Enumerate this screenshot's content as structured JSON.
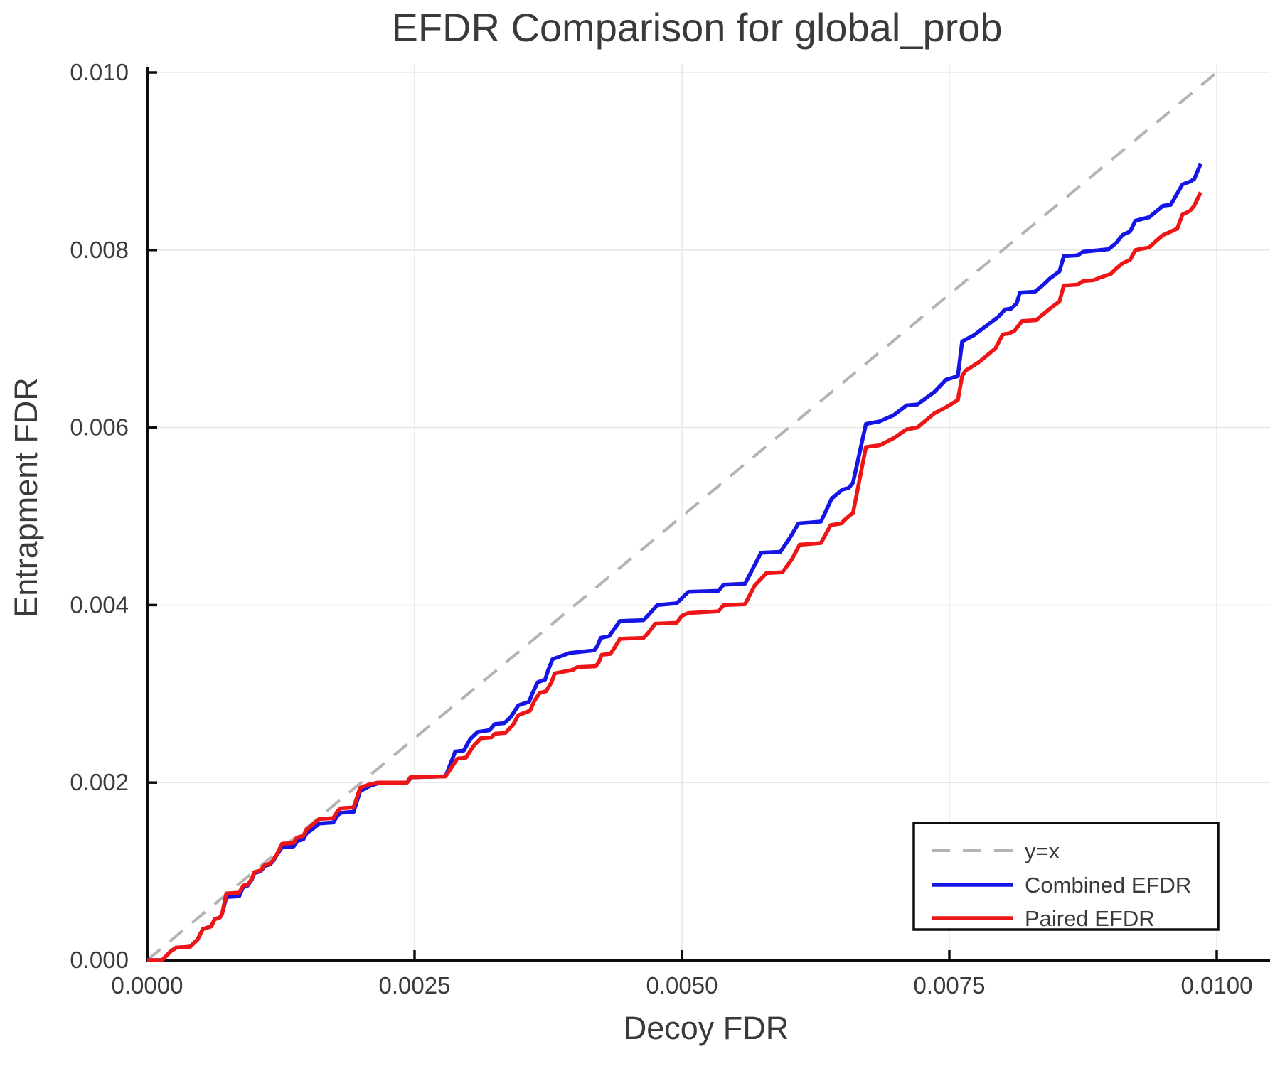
{
  "figure": {
    "background": "#ffffff",
    "text_color": "#3a3a3a",
    "axis_color": "#0d0d0d",
    "grid_color": "#e7e7e7"
  },
  "chart_data": {
    "type": "line",
    "title": "EFDR Comparison for global_prob",
    "xlabel": "Decoy FDR",
    "ylabel": "Entrapment FDR",
    "xlim": [
      0,
      0.0105
    ],
    "ylim": [
      0,
      0.0101
    ],
    "grid": true,
    "legend_position": "bottom-right",
    "x_ticks": {
      "values": [
        0,
        0.0025,
        0.005,
        0.0075,
        0.01
      ],
      "labels": [
        "0.0000",
        "0.0025",
        "0.0050",
        "0.0075",
        "0.0100"
      ]
    },
    "y_ticks": {
      "values": [
        0,
        0.002,
        0.004,
        0.006,
        0.008,
        0.01
      ],
      "labels": [
        "0.000",
        "0.002",
        "0.004",
        "0.006",
        "0.008",
        "0.010"
      ]
    },
    "series": [
      {
        "name": "y=x",
        "role": "reference",
        "style": "dashed",
        "color": "#b3b3b3",
        "points": [
          [
            0,
            0
          ],
          [
            0.01,
            0.01
          ]
        ]
      },
      {
        "name": "Combined EFDR",
        "role": "data",
        "style": "solid",
        "color": "#1515e6",
        "points": [
          [
            0,
            0
          ],
          [
            0.00014,
            0
          ],
          [
            0.00022,
            0.0001
          ],
          [
            0.00027,
            0.00014
          ],
          [
            0.0004,
            0.00015
          ],
          [
            0.00047,
            0.00023
          ],
          [
            0.00052,
            0.00035
          ],
          [
            0.0006,
            0.00038
          ],
          [
            0.00063,
            0.00046
          ],
          [
            0.00068,
            0.00048
          ],
          [
            0.0007,
            0.00052
          ],
          [
            0.00074,
            0.00071
          ],
          [
            0.00086,
            0.00072
          ],
          [
            0.0009,
            0.00083
          ],
          [
            0.00094,
            0.00084
          ],
          [
            0.00098,
            0.00091
          ],
          [
            0.001,
            0.00098
          ],
          [
            0.00106,
            0.001
          ],
          [
            0.0011,
            0.00106
          ],
          [
            0.00115,
            0.00108
          ],
          [
            0.00118,
            0.00112
          ],
          [
            0.00122,
            0.0012
          ],
          [
            0.00126,
            0.00127
          ],
          [
            0.00137,
            0.00128
          ],
          [
            0.0014,
            0.00134
          ],
          [
            0.00146,
            0.00136
          ],
          [
            0.00149,
            0.00143
          ],
          [
            0.00154,
            0.00147
          ],
          [
            0.00161,
            0.00154
          ],
          [
            0.00174,
            0.00155
          ],
          [
            0.00178,
            0.00163
          ],
          [
            0.00181,
            0.00166
          ],
          [
            0.00193,
            0.00167
          ],
          [
            0.00199,
            0.0019
          ],
          [
            0.00203,
            0.00193
          ],
          [
            0.00208,
            0.00196
          ],
          [
            0.00218,
            0.002
          ],
          [
            0.00243,
            0.002
          ],
          [
            0.00247,
            0.00206
          ],
          [
            0.00279,
            0.00207
          ],
          [
            0.00288,
            0.00235
          ],
          [
            0.00296,
            0.00236
          ],
          [
            0.00302,
            0.00249
          ],
          [
            0.00309,
            0.00257
          ],
          [
            0.0032,
            0.00259
          ],
          [
            0.00325,
            0.00266
          ],
          [
            0.00334,
            0.00267
          ],
          [
            0.0034,
            0.00274
          ],
          [
            0.00347,
            0.00287
          ],
          [
            0.00357,
            0.00291
          ],
          [
            0.0036,
            0.003
          ],
          [
            0.00365,
            0.00313
          ],
          [
            0.00372,
            0.00316
          ],
          [
            0.00375,
            0.00327
          ],
          [
            0.00379,
            0.00339
          ],
          [
            0.00395,
            0.00346
          ],
          [
            0.00418,
            0.00349
          ],
          [
            0.00421,
            0.00354
          ],
          [
            0.00424,
            0.00363
          ],
          [
            0.00432,
            0.00365
          ],
          [
            0.00436,
            0.00372
          ],
          [
            0.00442,
            0.00382
          ],
          [
            0.00464,
            0.00383
          ],
          [
            0.00468,
            0.00388
          ],
          [
            0.00477,
            0.004
          ],
          [
            0.00495,
            0.00402
          ],
          [
            0.00506,
            0.00415
          ],
          [
            0.00534,
            0.00416
          ],
          [
            0.00539,
            0.00423
          ],
          [
            0.00559,
            0.00424
          ],
          [
            0.00574,
            0.00459
          ],
          [
            0.00592,
            0.0046
          ],
          [
            0.00601,
            0.00476
          ],
          [
            0.00609,
            0.00492
          ],
          [
            0.0063,
            0.00494
          ],
          [
            0.0064,
            0.0052
          ],
          [
            0.0065,
            0.0053
          ],
          [
            0.00656,
            0.00532
          ],
          [
            0.0066,
            0.00538
          ],
          [
            0.00672,
            0.00604
          ],
          [
            0.00685,
            0.00607
          ],
          [
            0.00698,
            0.00614
          ],
          [
            0.0071,
            0.00625
          ],
          [
            0.0072,
            0.00626
          ],
          [
            0.00736,
            0.0064
          ],
          [
            0.00747,
            0.00654
          ],
          [
            0.00758,
            0.00658
          ],
          [
            0.00762,
            0.00697
          ],
          [
            0.00773,
            0.00704
          ],
          [
            0.00796,
            0.00725
          ],
          [
            0.00802,
            0.00733
          ],
          [
            0.00808,
            0.00734
          ],
          [
            0.00813,
            0.0074
          ],
          [
            0.00816,
            0.00752
          ],
          [
            0.0083,
            0.00753
          ],
          [
            0.00838,
            0.00761
          ],
          [
            0.00844,
            0.00768
          ],
          [
            0.00853,
            0.00776
          ],
          [
            0.00857,
            0.00793
          ],
          [
            0.0087,
            0.00794
          ],
          [
            0.00875,
            0.00798
          ],
          [
            0.00899,
            0.00801
          ],
          [
            0.00906,
            0.00808
          ],
          [
            0.00912,
            0.00817
          ],
          [
            0.00919,
            0.00821
          ],
          [
            0.00924,
            0.00833
          ],
          [
            0.00937,
            0.00837
          ],
          [
            0.00944,
            0.00844
          ],
          [
            0.0095,
            0.0085
          ],
          [
            0.00957,
            0.00851
          ],
          [
            0.00968,
            0.00874
          ],
          [
            0.00975,
            0.00877
          ],
          [
            0.00979,
            0.0088
          ],
          [
            0.00985,
            0.00897
          ]
        ]
      },
      {
        "name": "Paired EFDR",
        "role": "data",
        "style": "solid",
        "color": "#ed1515",
        "points": [
          [
            0,
            0
          ],
          [
            0.00014,
            0
          ],
          [
            0.00022,
            0.0001
          ],
          [
            0.00027,
            0.00014
          ],
          [
            0.0004,
            0.00015
          ],
          [
            0.00047,
            0.00023
          ],
          [
            0.00052,
            0.00035
          ],
          [
            0.0006,
            0.00038
          ],
          [
            0.00063,
            0.00046
          ],
          [
            0.00068,
            0.00048
          ],
          [
            0.0007,
            0.00052
          ],
          [
            0.00074,
            0.00075
          ],
          [
            0.00086,
            0.00076
          ],
          [
            0.0009,
            0.00084
          ],
          [
            0.00094,
            0.00085
          ],
          [
            0.00098,
            0.00092
          ],
          [
            0.001,
            0.00099
          ],
          [
            0.00106,
            0.00101
          ],
          [
            0.0011,
            0.00107
          ],
          [
            0.00115,
            0.00109
          ],
          [
            0.00118,
            0.00113
          ],
          [
            0.00122,
            0.00121
          ],
          [
            0.00126,
            0.00131
          ],
          [
            0.00137,
            0.00132
          ],
          [
            0.0014,
            0.00138
          ],
          [
            0.00146,
            0.0014
          ],
          [
            0.00149,
            0.00147
          ],
          [
            0.00154,
            0.00152
          ],
          [
            0.00161,
            0.00159
          ],
          [
            0.00174,
            0.0016
          ],
          [
            0.00178,
            0.00168
          ],
          [
            0.00181,
            0.00171
          ],
          [
            0.00193,
            0.00172
          ],
          [
            0.00199,
            0.00194
          ],
          [
            0.00203,
            0.00196
          ],
          [
            0.00208,
            0.00198
          ],
          [
            0.00216,
            0.002
          ],
          [
            0.00243,
            0.002
          ],
          [
            0.00246,
            0.00206
          ],
          [
            0.00279,
            0.00207
          ],
          [
            0.0029,
            0.00227
          ],
          [
            0.00298,
            0.00228
          ],
          [
            0.00305,
            0.00241
          ],
          [
            0.00312,
            0.0025
          ],
          [
            0.00322,
            0.00251
          ],
          [
            0.00325,
            0.00255
          ],
          [
            0.00335,
            0.00256
          ],
          [
            0.00342,
            0.00265
          ],
          [
            0.00347,
            0.00276
          ],
          [
            0.00358,
            0.00281
          ],
          [
            0.00362,
            0.00292
          ],
          [
            0.00367,
            0.00301
          ],
          [
            0.00373,
            0.00303
          ],
          [
            0.00378,
            0.00313
          ],
          [
            0.00381,
            0.00323
          ],
          [
            0.00398,
            0.00327
          ],
          [
            0.00402,
            0.0033
          ],
          [
            0.00419,
            0.00331
          ],
          [
            0.00422,
            0.00335
          ],
          [
            0.00425,
            0.00344
          ],
          [
            0.00433,
            0.00345
          ],
          [
            0.00436,
            0.0035
          ],
          [
            0.00442,
            0.00362
          ],
          [
            0.00464,
            0.00363
          ],
          [
            0.00468,
            0.00368
          ],
          [
            0.00475,
            0.00379
          ],
          [
            0.00495,
            0.0038
          ],
          [
            0.005,
            0.00388
          ],
          [
            0.00506,
            0.00391
          ],
          [
            0.00534,
            0.00393
          ],
          [
            0.00539,
            0.004
          ],
          [
            0.00559,
            0.00401
          ],
          [
            0.00568,
            0.00422
          ],
          [
            0.00579,
            0.00436
          ],
          [
            0.00594,
            0.00437
          ],
          [
            0.00603,
            0.00452
          ],
          [
            0.0061,
            0.00468
          ],
          [
            0.0063,
            0.0047
          ],
          [
            0.00639,
            0.0049
          ],
          [
            0.00649,
            0.00492
          ],
          [
            0.00654,
            0.00498
          ],
          [
            0.0066,
            0.00504
          ],
          [
            0.00672,
            0.00578
          ],
          [
            0.00685,
            0.0058
          ],
          [
            0.00698,
            0.00588
          ],
          [
            0.0071,
            0.00598
          ],
          [
            0.0072,
            0.006
          ],
          [
            0.00736,
            0.00616
          ],
          [
            0.00747,
            0.00623
          ],
          [
            0.00758,
            0.00631
          ],
          [
            0.00762,
            0.00658
          ],
          [
            0.00765,
            0.00664
          ],
          [
            0.00778,
            0.00674
          ],
          [
            0.00793,
            0.00689
          ],
          [
            0.008,
            0.00705
          ],
          [
            0.00806,
            0.00706
          ],
          [
            0.00811,
            0.00709
          ],
          [
            0.00818,
            0.0072
          ],
          [
            0.00831,
            0.00721
          ],
          [
            0.00838,
            0.00728
          ],
          [
            0.00844,
            0.00734
          ],
          [
            0.00853,
            0.00742
          ],
          [
            0.00857,
            0.0076
          ],
          [
            0.0087,
            0.00761
          ],
          [
            0.00875,
            0.00765
          ],
          [
            0.00885,
            0.00766
          ],
          [
            0.00891,
            0.00769
          ],
          [
            0.00901,
            0.00773
          ],
          [
            0.00906,
            0.00779
          ],
          [
            0.00912,
            0.00785
          ],
          [
            0.00919,
            0.00789
          ],
          [
            0.00924,
            0.008
          ],
          [
            0.00937,
            0.00803
          ],
          [
            0.00944,
            0.00811
          ],
          [
            0.0095,
            0.00817
          ],
          [
            0.00963,
            0.00824
          ],
          [
            0.00968,
            0.0084
          ],
          [
            0.00975,
            0.00844
          ],
          [
            0.00979,
            0.0085
          ],
          [
            0.00985,
            0.00865
          ]
        ]
      }
    ]
  }
}
